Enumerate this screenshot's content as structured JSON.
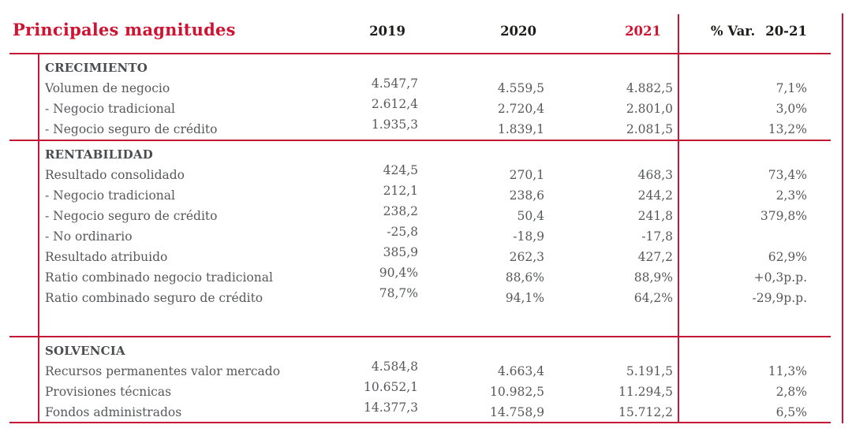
{
  "colors": {
    "line_red": "#C41735",
    "title_red": "#D01331",
    "text_gray": "#57585A",
    "section_gray": "#4B4C4E",
    "header_black": "#1D1D1B"
  },
  "table": {
    "title": "Principales magnitudes",
    "columns": [
      "2019",
      "2020",
      "2021"
    ],
    "var_column": {
      "label": "% Var.",
      "range": "20-21"
    },
    "sections": [
      {
        "header": "CRECIMIENTO",
        "rows": [
          {
            "label": "Volumen de negocio",
            "v2019": "4.547,7",
            "v2020": "4.559,5",
            "v2021": "4.882,5",
            "var": "7,1%"
          },
          {
            "label": "- Negocio tradicional",
            "v2019": "2.612,4",
            "v2020": "2.720,4",
            "v2021": "2.801,0",
            "var": "3,0%"
          },
          {
            "label": "- Negocio seguro de crédito",
            "v2019": "1.935,3",
            "v2020": "1.839,1",
            "v2021": "2.081,5",
            "var": "13,2%"
          }
        ]
      },
      {
        "header": "RENTABILIDAD",
        "rows": [
          {
            "label": "Resultado consolidado",
            "v2019": "424,5",
            "v2020": "270,1",
            "v2021": "468,3",
            "var": "73,4%"
          },
          {
            "label": "- Negocio tradicional",
            "v2019": "212,1",
            "v2020": "238,6",
            "v2021": "244,2",
            "var": "2,3%"
          },
          {
            "label": "- Negocio seguro de crédito",
            "v2019": "238,2",
            "v2020": "50,4",
            "v2021": "241,8",
            "var": "379,8%"
          },
          {
            "label": "- No ordinario",
            "v2019": "-25,8",
            "v2020": "-18,9",
            "v2021": "-17,8",
            "var": ""
          },
          {
            "label": "Resultado atribuido",
            "v2019": "385,9",
            "v2020": "262,3",
            "v2021": "427,2",
            "var": "62,9%"
          },
          {
            "label": "Ratio combinado negocio tradicional",
            "v2019": "90,4%",
            "v2020": "88,6%",
            "v2021": "88,9%",
            "var": "+0,3p.p."
          },
          {
            "label": "Ratio combinado seguro de crédito",
            "v2019": "78,7%",
            "v2020": "94,1%",
            "v2021": "64,2%",
            "var": "-29,9p.p."
          }
        ]
      },
      {
        "header": "SOLVENCIA",
        "rows": [
          {
            "label": "Recursos permanentes valor mercado",
            "v2019": "4.584,8",
            "v2020": "4.663,4",
            "v2021": "5.191,5",
            "var": "11,3%"
          },
          {
            "label": "Provisiones técnicas",
            "v2019": "10.652,1",
            "v2020": "10.982,5",
            "v2021": "11.294,5",
            "var": "2,8%"
          },
          {
            "label": "Fondos administrados",
            "v2019": "14.377,3",
            "v2020": "14.758,9",
            "v2021": "15.712,2",
            "var": "6,5%"
          }
        ]
      }
    ]
  }
}
